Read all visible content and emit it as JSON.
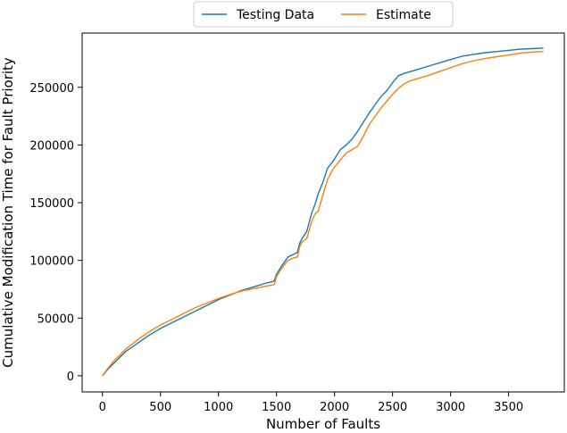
{
  "chart_data": {
    "type": "line",
    "xlabel": "Number of Faults",
    "ylabel": "Cumulative Modification Time for Fault Priority",
    "xlim": [
      -175,
      3980
    ],
    "ylim": [
      -14000,
      297000
    ],
    "xticks": [
      0,
      500,
      1000,
      1500,
      2000,
      2500,
      3000,
      3500
    ],
    "yticks": [
      0,
      50000,
      100000,
      150000,
      200000,
      250000
    ],
    "grid": false,
    "legend_position": "top-center",
    "series": [
      {
        "name": "Testing Data",
        "color": "#1f77b4",
        "x": [
          0,
          50,
          100,
          150,
          200,
          300,
          400,
          500,
          600,
          700,
          800,
          900,
          1000,
          1100,
          1200,
          1300,
          1400,
          1480,
          1500,
          1550,
          1600,
          1640,
          1680,
          1700,
          1720,
          1760,
          1800,
          1830,
          1860,
          1900,
          1940,
          1980,
          2000,
          2050,
          2100,
          2150,
          2200,
          2250,
          2300,
          2350,
          2400,
          2450,
          2500,
          2550,
          2600,
          2650,
          2700,
          2800,
          2900,
          3000,
          3100,
          3200,
          3300,
          3400,
          3500,
          3600,
          3700,
          3800
        ],
        "y": [
          0,
          6000,
          11000,
          16000,
          21000,
          28000,
          35000,
          41000,
          46000,
          51000,
          56000,
          61000,
          66000,
          70000,
          74000,
          77000,
          80000,
          82000,
          88000,
          96000,
          103000,
          105000,
          107000,
          115000,
          119000,
          125000,
          140000,
          148000,
          158000,
          168000,
          180000,
          185000,
          188000,
          196000,
          200000,
          205000,
          212000,
          220000,
          228000,
          235000,
          242000,
          247000,
          254000,
          260000,
          262000,
          263500,
          265000,
          268000,
          271000,
          274000,
          277000,
          278500,
          280000,
          281000,
          282000,
          283000,
          283500,
          284000
        ]
      },
      {
        "name": "Estimate",
        "color": "#ff7f0e",
        "x": [
          0,
          50,
          100,
          150,
          200,
          300,
          400,
          500,
          600,
          700,
          800,
          900,
          1000,
          1100,
          1200,
          1300,
          1400,
          1480,
          1500,
          1550,
          1600,
          1640,
          1680,
          1700,
          1720,
          1760,
          1800,
          1830,
          1860,
          1900,
          1940,
          1980,
          2000,
          2050,
          2100,
          2150,
          2200,
          2250,
          2300,
          2350,
          2400,
          2450,
          2500,
          2550,
          2600,
          2650,
          2700,
          2800,
          2900,
          3000,
          3100,
          3200,
          3300,
          3400,
          3500,
          3600,
          3700,
          3800
        ],
        "y": [
          0,
          7000,
          13000,
          18000,
          23000,
          31000,
          38000,
          44000,
          49000,
          54000,
          59000,
          63000,
          67000,
          70500,
          73500,
          75500,
          77500,
          79000,
          86000,
          94000,
          100000,
          102000,
          103000,
          112000,
          116000,
          119000,
          133000,
          140000,
          143000,
          157000,
          170000,
          178000,
          181000,
          187000,
          193000,
          196000,
          199000,
          208000,
          218000,
          225000,
          232000,
          238000,
          244000,
          249000,
          253000,
          255500,
          257000,
          260000,
          263500,
          267000,
          270500,
          273000,
          275000,
          276500,
          278000,
          279500,
          280500,
          281000
        ]
      }
    ]
  }
}
